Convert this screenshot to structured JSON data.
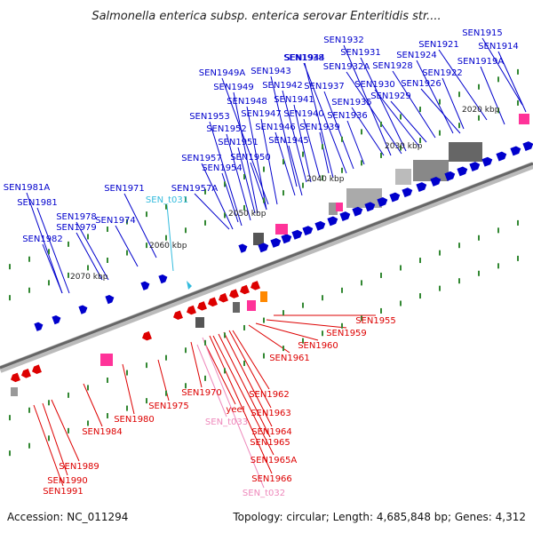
{
  "title": "Salmonella enterica subsp. enterica serovar Enteritidis str....",
  "accession": "Accession: NC_011294",
  "topology": "Topology: circular; Length: 4,685,848 bp; Genes: 4,312",
  "colors": {
    "forward_gene": "#0000cc",
    "reverse_gene": "#dd0000",
    "trna": "#33bbdd",
    "pseudo": "#ee88bb",
    "backbone": "#888888",
    "tick": "#338833",
    "highlight_box": "#ff3399",
    "gc_band": "#555555",
    "orange_box": "#ff8800"
  },
  "kbp_labels": [
    "2020 kbp",
    "2030 kbp",
    "2040 kbp",
    "2050 kbp",
    "2060 kbp",
    "2070 kbp"
  ],
  "forward_labels": [
    "SEN1915",
    "SEN1914",
    "SEN1932",
    "SEN1921",
    "SEN1931",
    "SEN1944",
    "SEN1938",
    "SEN1924",
    "SEN1919A",
    "SEN1932A",
    "SEN1928",
    "SEN1922",
    "SEN1949A",
    "SEN1943",
    "SEN1930",
    "SEN1926",
    "SEN1949",
    "SEN1942",
    "SEN1937",
    "SEN1929",
    "SEN1935",
    "SEN1948",
    "SEN1941",
    "SEN1947",
    "SEN1940",
    "SEN1953",
    "SEN1936",
    "SEN1946",
    "SEN1952",
    "SEN1939",
    "SEN1945",
    "SEN1951",
    "SEN1950",
    "SEN1957",
    "SEN1954",
    "SEN1981A",
    "SEN1971",
    "SEN1957A",
    "SEN1981",
    "SEN1978",
    "SEN1974",
    "SEN1979",
    "SEN1982"
  ],
  "trna_labels": [
    "SEN_t031"
  ],
  "reverse_labels": [
    "SEN1955",
    "SEN1959",
    "SEN1960",
    "SEN1961",
    "SEN1962",
    "SEN1970",
    "SEN1963",
    "SEN1975",
    "SEN1964",
    "SEN1980",
    "SEN1965",
    "SEN1984",
    "SEN1965A",
    "SEN1989",
    "SEN1966",
    "SEN1990",
    "SEN1991"
  ],
  "gene_name_labels": [
    "yeeI"
  ],
  "pseudo_labels": [
    "SEN_t033",
    "SEN_t032"
  ]
}
